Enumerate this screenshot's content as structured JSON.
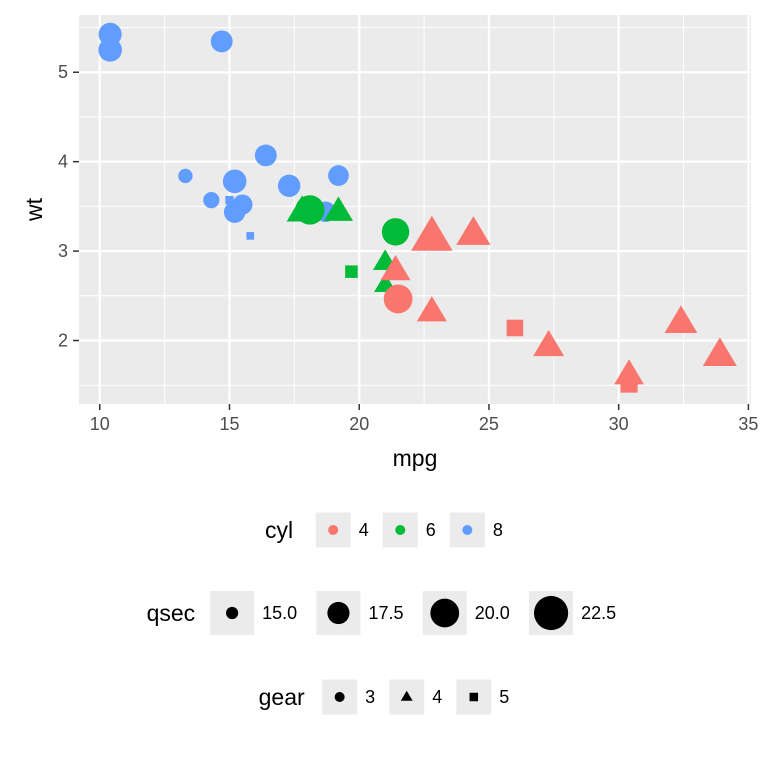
{
  "chart_data": {
    "type": "scatter",
    "title": "",
    "xlabel": "mpg",
    "ylabel": "wt",
    "xlim": [
      9.2,
      35.1
    ],
    "ylim": [
      1.29,
      5.64
    ],
    "x_ticks": [
      10,
      15,
      20,
      25,
      30,
      35
    ],
    "y_ticks": [
      2,
      3,
      4,
      5
    ],
    "grid": true,
    "legend_position": "bottom",
    "colors": {
      "4": "#F8766D",
      "6": "#00BA38",
      "8": "#619CFF"
    },
    "points": [
      {
        "mpg": 21.0,
        "wt": 2.62,
        "cyl": 6,
        "qsec": 16.46,
        "gear": 4
      },
      {
        "mpg": 21.0,
        "wt": 2.875,
        "cyl": 6,
        "qsec": 17.02,
        "gear": 4
      },
      {
        "mpg": 22.8,
        "wt": 2.32,
        "cyl": 4,
        "qsec": 18.61,
        "gear": 4
      },
      {
        "mpg": 21.4,
        "wt": 3.215,
        "cyl": 6,
        "qsec": 19.44,
        "gear": 3
      },
      {
        "mpg": 18.7,
        "wt": 3.44,
        "cyl": 8,
        "qsec": 17.02,
        "gear": 3
      },
      {
        "mpg": 18.1,
        "wt": 3.46,
        "cyl": 6,
        "qsec": 20.22,
        "gear": 3
      },
      {
        "mpg": 14.3,
        "wt": 3.57,
        "cyl": 8,
        "qsec": 15.84,
        "gear": 3
      },
      {
        "mpg": 24.4,
        "wt": 3.19,
        "cyl": 4,
        "qsec": 20.0,
        "gear": 4
      },
      {
        "mpg": 22.8,
        "wt": 3.15,
        "cyl": 4,
        "qsec": 22.9,
        "gear": 4
      },
      {
        "mpg": 19.2,
        "wt": 3.44,
        "cyl": 6,
        "qsec": 18.3,
        "gear": 4
      },
      {
        "mpg": 17.8,
        "wt": 3.44,
        "cyl": 6,
        "qsec": 18.9,
        "gear": 4
      },
      {
        "mpg": 16.4,
        "wt": 4.07,
        "cyl": 8,
        "qsec": 17.4,
        "gear": 3
      },
      {
        "mpg": 17.3,
        "wt": 3.73,
        "cyl": 8,
        "qsec": 17.6,
        "gear": 3
      },
      {
        "mpg": 15.2,
        "wt": 3.78,
        "cyl": 8,
        "qsec": 18.0,
        "gear": 3
      },
      {
        "mpg": 10.4,
        "wt": 5.25,
        "cyl": 8,
        "qsec": 17.98,
        "gear": 3
      },
      {
        "mpg": 10.4,
        "wt": 5.424,
        "cyl": 8,
        "qsec": 17.82,
        "gear": 3
      },
      {
        "mpg": 14.7,
        "wt": 5.345,
        "cyl": 8,
        "qsec": 17.42,
        "gear": 3
      },
      {
        "mpg": 32.4,
        "wt": 2.2,
        "cyl": 4,
        "qsec": 19.47,
        "gear": 4
      },
      {
        "mpg": 30.4,
        "wt": 1.615,
        "cyl": 4,
        "qsec": 18.52,
        "gear": 4
      },
      {
        "mpg": 33.9,
        "wt": 1.835,
        "cyl": 4,
        "qsec": 19.9,
        "gear": 4
      },
      {
        "mpg": 21.5,
        "wt": 2.465,
        "cyl": 4,
        "qsec": 20.01,
        "gear": 3
      },
      {
        "mpg": 15.5,
        "wt": 3.52,
        "cyl": 8,
        "qsec": 16.87,
        "gear": 3
      },
      {
        "mpg": 15.2,
        "wt": 3.435,
        "cyl": 8,
        "qsec": 17.3,
        "gear": 3
      },
      {
        "mpg": 13.3,
        "wt": 3.84,
        "cyl": 8,
        "qsec": 15.41,
        "gear": 3
      },
      {
        "mpg": 19.2,
        "wt": 3.845,
        "cyl": 8,
        "qsec": 17.05,
        "gear": 3
      },
      {
        "mpg": 27.3,
        "wt": 1.935,
        "cyl": 4,
        "qsec": 18.9,
        "gear": 4
      },
      {
        "mpg": 26.0,
        "wt": 2.14,
        "cyl": 4,
        "qsec": 16.7,
        "gear": 5
      },
      {
        "mpg": 30.4,
        "wt": 1.513,
        "cyl": 4,
        "qsec": 16.9,
        "gear": 5
      },
      {
        "mpg": 15.8,
        "wt": 3.17,
        "cyl": 8,
        "qsec": 14.5,
        "gear": 5
      },
      {
        "mpg": 19.7,
        "wt": 2.77,
        "cyl": 6,
        "qsec": 15.5,
        "gear": 5
      },
      {
        "mpg": 15.0,
        "wt": 3.57,
        "cyl": 8,
        "qsec": 14.6,
        "gear": 5
      },
      {
        "mpg": 21.4,
        "wt": 2.78,
        "cyl": 4,
        "qsec": 18.6,
        "gear": 4
      }
    ],
    "legends": [
      {
        "title": "cyl",
        "keys": [
          {
            "label": "4",
            "color": "#F8766D",
            "shape": "circle",
            "size": "small"
          },
          {
            "label": "6",
            "color": "#00BA38",
            "shape": "circle",
            "size": "small"
          },
          {
            "label": "8",
            "color": "#619CFF",
            "shape": "circle",
            "size": "small"
          }
        ]
      },
      {
        "title": "qsec",
        "keys": [
          {
            "label": "15.0",
            "color": "#000000",
            "shape": "circle",
            "size": 15.0
          },
          {
            "label": "17.5",
            "color": "#000000",
            "shape": "circle",
            "size": 17.5
          },
          {
            "label": "20.0",
            "color": "#000000",
            "shape": "circle",
            "size": 20.0
          },
          {
            "label": "22.5",
            "color": "#000000",
            "shape": "circle",
            "size": 22.5
          }
        ]
      },
      {
        "title": "gear",
        "keys": [
          {
            "label": "3",
            "color": "#000000",
            "shape": "circle",
            "size": "small"
          },
          {
            "label": "4",
            "color": "#000000",
            "shape": "triangle",
            "size": "small"
          },
          {
            "label": "5",
            "color": "#000000",
            "shape": "square",
            "size": "small"
          }
        ]
      }
    ]
  }
}
